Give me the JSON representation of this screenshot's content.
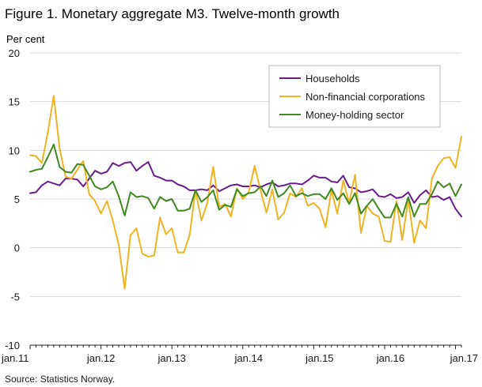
{
  "title": "Figure 1. Monetary aggregate M3. Twelve-month growth",
  "source": "Source: Statistics Norway.",
  "colors": {
    "households": "#6b1b8a",
    "nonfinancial": "#f0b323",
    "moneyholding": "#3f8a1f",
    "grid": "#d9d9d9",
    "axis": "#222222"
  },
  "chart_data": {
    "type": "line",
    "title": "Figure 1. Monetary aggregate M3. Twelve-month growth",
    "ylabel": "Per cent",
    "xlabel": "",
    "ylim": [
      -10,
      20
    ],
    "yticks": [
      -10,
      -5,
      0,
      5,
      10,
      15,
      20
    ],
    "grid": true,
    "legend_position": "top-right",
    "x_tick_labels": [
      "jan.11",
      "jan.12",
      "jan.13",
      "jan.14",
      "jan.15",
      "jan.16",
      "jan.17"
    ],
    "x_start": "2011-01",
    "x_end": "2017-01",
    "series": [
      {
        "name": "Households",
        "color_key": "households",
        "values": [
          5.6,
          5.7,
          6.4,
          6.8,
          6.6,
          6.4,
          7.1,
          7.1,
          7.0,
          6.3,
          7.1,
          7.9,
          7.6,
          7.8,
          8.7,
          8.4,
          8.7,
          8.8,
          7.9,
          8.4,
          8.8,
          7.4,
          7.2,
          6.9,
          6.9,
          6.5,
          6.3,
          5.9,
          5.9,
          6.0,
          5.9,
          6.4,
          5.8,
          6.1,
          6.4,
          6.5,
          6.3,
          6.3,
          6.4,
          6.2,
          6.5,
          6.7,
          6.3,
          6.4,
          6.6,
          6.6,
          6.5,
          6.9,
          7.4,
          7.2,
          7.2,
          6.8,
          6.7,
          7.4,
          6.2,
          6.1,
          5.7,
          5.8,
          6.0,
          5.3,
          5.2,
          5.5,
          5.1,
          5.2,
          5.7,
          4.6,
          5.4,
          5.9,
          5.2,
          5.3,
          4.9,
          5.2,
          4.0,
          3.2
        ]
      },
      {
        "name": "Non-financial corporations",
        "color_key": "nonfinancial",
        "values": [
          9.5,
          9.4,
          8.7,
          11.8,
          15.6,
          10.2,
          7.3,
          7.1,
          8.0,
          8.9,
          5.5,
          4.8,
          3.5,
          4.8,
          2.8,
          0.3,
          -4.2,
          1.3,
          2.0,
          -0.6,
          -0.9,
          -0.8,
          3.1,
          1.4,
          2.0,
          -0.5,
          -0.5,
          1.3,
          5.9,
          2.8,
          4.6,
          8.3,
          4.2,
          4.5,
          3.2,
          6.1,
          5.0,
          5.7,
          8.4,
          5.9,
          3.6,
          6.0,
          2.9,
          3.6,
          5.6,
          5.2,
          6.1,
          4.3,
          4.6,
          4.0,
          2.1,
          5.9,
          3.5,
          6.9,
          4.6,
          7.5,
          1.5,
          4.3,
          3.5,
          3.2,
          0.7,
          0.6,
          4.8,
          0.8,
          5.0,
          0.5,
          2.8,
          2.0,
          7.1,
          8.4,
          9.2,
          9.3,
          8.2,
          11.4
        ]
      },
      {
        "name": "Money-holding sector",
        "color_key": "moneyholding",
        "values": [
          7.8,
          8.0,
          8.1,
          9.3,
          10.6,
          8.3,
          7.8,
          7.7,
          8.6,
          8.5,
          7.4,
          6.3,
          6.0,
          6.2,
          6.8,
          5.3,
          3.3,
          5.7,
          5.2,
          5.3,
          5.1,
          4.0,
          5.2,
          4.8,
          5.0,
          3.8,
          3.8,
          4.0,
          5.9,
          4.7,
          5.2,
          5.9,
          3.9,
          4.4,
          4.2,
          6.0,
          5.3,
          5.6,
          5.7,
          6.3,
          5.3,
          6.9,
          5.2,
          5.6,
          6.4,
          5.3,
          5.6,
          5.3,
          5.5,
          5.5,
          5.0,
          6.1,
          4.9,
          5.6,
          4.5,
          5.6,
          3.5,
          4.3,
          5.0,
          4.0,
          3.1,
          3.1,
          4.5,
          3.2,
          5.2,
          3.2,
          4.5,
          4.5,
          5.5,
          6.8,
          6.2,
          6.6,
          5.3,
          6.5
        ]
      }
    ]
  }
}
